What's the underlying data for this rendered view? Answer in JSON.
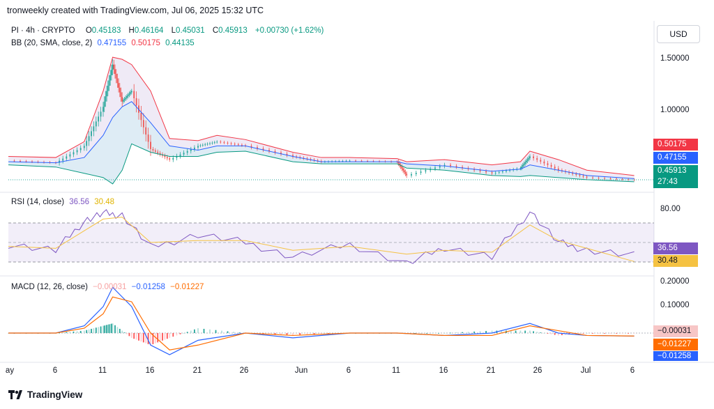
{
  "caption": "tronweekly created with TradingView.com, Jul 06, 2025 15:32 UTC",
  "currency_button": "USD",
  "logo_text": "TradingView",
  "colors": {
    "up": "#26a69a",
    "down": "#ef5350",
    "bb_upper": "#f23645",
    "bb_basis": "#2962ff",
    "bb_lower": "#089981",
    "rsi": "#7e57c2",
    "rsi_ma": "#f5c242",
    "macd": "#2962ff",
    "signal": "#ff6d00"
  },
  "price_legend": {
    "symbol": "PI · 4h · CRYPTO",
    "o_label": "O",
    "o": "0.45183",
    "h_label": "H",
    "h": "0.46164",
    "l_label": "L",
    "l": "0.45031",
    "c_label": "C",
    "c": "0.45913",
    "change": "+0.00730 (+1.62%)"
  },
  "bb_legend": {
    "label": "BB (20, SMA, close, 2)",
    "basis": "0.47155",
    "upper": "0.50175",
    "lower": "0.44135"
  },
  "rsi_legend": {
    "label": "RSI (14, close)",
    "rsi": "36.56",
    "ma": "30.48"
  },
  "macd_legend": {
    "label": "MACD (12, 26, close)",
    "hist": "−0.00031",
    "macd": "−0.01258",
    "signal": "−0.01227"
  },
  "price_axis": {
    "ticks": [
      "1.50000",
      "1.00000"
    ]
  },
  "price_badges": {
    "upper": "0.50175",
    "basis": "0.47155",
    "close": "0.45913",
    "countdown": "27:43"
  },
  "rsi_axis": {
    "ticks": [
      "80.00"
    ]
  },
  "rsi_badges": {
    "rsi": "36.56",
    "ma": "30.48"
  },
  "macd_axis": {
    "ticks": [
      "0.20000",
      "0.10000"
    ]
  },
  "macd_badges": {
    "hist": "−0.00031",
    "signal": "−0.01227",
    "macd": "−0.01258"
  },
  "time_axis": {
    "labels": [
      "ay",
      "6",
      "11",
      "16",
      "21",
      "26",
      "Jun",
      "6",
      "11",
      "16",
      "21",
      "26",
      "Jul",
      "6"
    ]
  },
  "chart_data": [
    {
      "type": "line",
      "title": "PI · 4h · CRYPTO",
      "x": [
        "May 1",
        "May 6",
        "May 9",
        "May 11",
        "May 12",
        "May 13",
        "May 14",
        "May 16",
        "May 18",
        "May 21",
        "May 23",
        "May 26",
        "May 31",
        "Jun 3",
        "Jun 6",
        "Jun 11",
        "Jun 12",
        "Jun 16",
        "Jun 21",
        "Jun 24",
        "Jun 25",
        "Jun 28",
        "Jul 1",
        "Jul 6"
      ],
      "series": [
        {
          "name": "close",
          "values": [
            0.64,
            0.62,
            0.78,
            1.15,
            1.55,
            1.2,
            1.3,
            0.75,
            0.65,
            0.78,
            0.82,
            0.78,
            0.68,
            0.63,
            0.64,
            0.63,
            0.5,
            0.6,
            0.52,
            0.57,
            0.68,
            0.55,
            0.48,
            0.459
          ]
        },
        {
          "name": "BB upper 0.50175",
          "values": [
            0.68,
            0.67,
            0.82,
            1.3,
            1.62,
            1.6,
            1.55,
            1.3,
            0.85,
            0.83,
            0.88,
            0.84,
            0.72,
            0.67,
            0.67,
            0.66,
            0.63,
            0.65,
            0.6,
            0.63,
            0.73,
            0.65,
            0.55,
            0.5
          ]
        },
        {
          "name": "BB basis 0.47155",
          "values": [
            0.63,
            0.62,
            0.67,
            0.88,
            1.05,
            1.15,
            1.2,
            1.0,
            0.78,
            0.74,
            0.78,
            0.78,
            0.68,
            0.63,
            0.63,
            0.63,
            0.61,
            0.59,
            0.54,
            0.56,
            0.6,
            0.55,
            0.5,
            0.47
          ]
        },
        {
          "name": "BB lower 0.44135",
          "values": [
            0.6,
            0.58,
            0.52,
            0.48,
            0.42,
            0.55,
            0.8,
            0.72,
            0.68,
            0.68,
            0.72,
            0.73,
            0.63,
            0.61,
            0.61,
            0.61,
            0.57,
            0.55,
            0.5,
            0.49,
            0.5,
            0.48,
            0.46,
            0.44
          ]
        }
      ],
      "ylim": [
        0.38,
        1.7
      ]
    },
    {
      "type": "line",
      "title": "RSI (14, close)",
      "x": [
        "May 1",
        "May 6",
        "May 9",
        "May 11",
        "May 13",
        "May 16",
        "May 21",
        "May 26",
        "May 31",
        "Jun 6",
        "Jun 12",
        "Jun 16",
        "Jun 21",
        "Jun 25",
        "Jun 28",
        "Jul 1",
        "Jul 6"
      ],
      "series": [
        {
          "name": "RSI 36.56",
          "values": [
            48,
            42,
            72,
            80,
            78,
            45,
            58,
            50,
            35,
            48,
            28,
            45,
            35,
            82,
            50,
            42,
            36.56
          ]
        },
        {
          "name": "RSI MA 30.48",
          "values": [
            46,
            44,
            62,
            74,
            76,
            50,
            52,
            52,
            42,
            46,
            38,
            42,
            40,
            68,
            52,
            44,
            30.48
          ]
        }
      ],
      "band": [
        30,
        70
      ],
      "ylim": [
        20,
        90
      ]
    },
    {
      "type": "line",
      "title": "MACD (12, 26, close)",
      "x": [
        "May 1",
        "May 6",
        "May 9",
        "May 11",
        "May 12",
        "May 14",
        "May 16",
        "May 18",
        "May 21",
        "May 26",
        "May 31",
        "Jun 6",
        "Jun 11",
        "Jun 16",
        "Jun 21",
        "Jun 25",
        "Jun 28",
        "Jul 1",
        "Jul 6"
      ],
      "series": [
        {
          "name": "MACD −0.01258",
          "values": [
            0.0,
            0.0,
            0.03,
            0.11,
            0.19,
            0.11,
            -0.05,
            -0.09,
            -0.03,
            0.0,
            -0.02,
            0.0,
            0.0,
            -0.01,
            0.0,
            0.04,
            0.0,
            -0.01,
            -0.01258
          ]
        },
        {
          "name": "Signal −0.01227",
          "values": [
            0.0,
            0.0,
            0.02,
            0.08,
            0.15,
            0.13,
            0.0,
            -0.07,
            -0.05,
            0.0,
            -0.01,
            0.0,
            0.0,
            -0.01,
            -0.01,
            0.03,
            0.01,
            -0.01,
            -0.01227
          ]
        },
        {
          "name": "Histogram −0.00031",
          "values": [
            0.0,
            0.0,
            0.01,
            0.03,
            0.04,
            -0.02,
            -0.05,
            -0.02,
            0.02,
            0.0,
            -0.01,
            0.0,
            0.0,
            0.0,
            0.01,
            0.01,
            -0.01,
            0.0,
            -0.00031
          ]
        }
      ],
      "ylim": [
        -0.11,
        0.22
      ]
    }
  ]
}
